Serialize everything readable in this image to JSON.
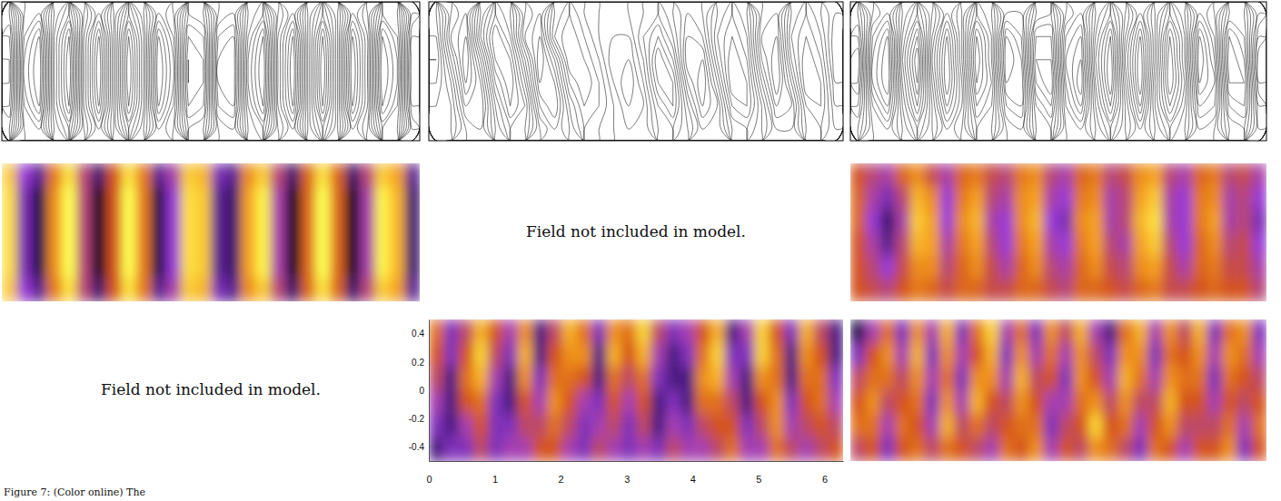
{
  "chart_data": [
    {
      "type": "contour",
      "zlim": [
        -9,
        9
      ],
      "tick_labels": false,
      "z": [
        [
          4,
          -3,
          -4,
          2,
          5,
          -1,
          -5,
          0,
          5,
          1,
          -4,
          -2,
          4,
          3,
          -3,
          -4,
          2,
          4,
          -2,
          -5,
          1,
          5,
          1,
          -5,
          -2,
          4,
          3,
          -4
        ],
        [
          6,
          -4,
          -7,
          3,
          8,
          -2,
          -8,
          0,
          8,
          2,
          -7,
          -3,
          6,
          5,
          -5,
          -6,
          3,
          7,
          -3,
          -8,
          1,
          8,
          1,
          -8,
          -3,
          7,
          4,
          -6
        ],
        [
          7,
          -5,
          -8,
          3,
          9,
          -2,
          -9,
          0,
          9,
          2,
          -8,
          -4,
          7,
          6,
          -6,
          -7,
          4,
          8,
          -3,
          -9,
          1,
          9,
          1,
          -9,
          -3,
          8,
          5,
          -7
        ],
        [
          7,
          -5,
          -8,
          3,
          9,
          -2,
          -9,
          0,
          9,
          2,
          -8,
          -4,
          7,
          6,
          -6,
          -7,
          4,
          8,
          -3,
          -9,
          1,
          9,
          1,
          -9,
          -3,
          8,
          5,
          -7
        ],
        [
          6,
          -4,
          -7,
          3,
          8,
          -2,
          -8,
          0,
          8,
          2,
          -7,
          -3,
          6,
          5,
          -5,
          -6,
          3,
          7,
          -3,
          -8,
          1,
          8,
          1,
          -8,
          -3,
          7,
          4,
          -6
        ],
        [
          4,
          -3,
          -4,
          2,
          5,
          -1,
          -5,
          0,
          5,
          1,
          -4,
          -2,
          4,
          3,
          -3,
          -4,
          2,
          4,
          -2,
          -5,
          1,
          5,
          1,
          -5,
          -2,
          4,
          3,
          -4
        ]
      ]
    },
    {
      "type": "contour",
      "zlim": [
        -9,
        9
      ],
      "tick_labels": false,
      "z": [
        [
          2,
          -3,
          -5,
          1,
          5,
          3,
          -2,
          -4,
          1,
          3,
          1,
          0,
          -1,
          0,
          1,
          2,
          0,
          -2,
          -1,
          2,
          4,
          2,
          -3,
          -4,
          1,
          3,
          1,
          -1
        ],
        [
          3,
          -4,
          -6,
          2,
          7,
          4,
          -3,
          -5,
          2,
          4,
          2,
          0,
          -1,
          -1,
          2,
          4,
          1,
          -3,
          -2,
          3,
          5,
          3,
          -4,
          -5,
          2,
          4,
          2,
          -2
        ],
        [
          4,
          -2,
          -7,
          -1,
          6,
          6,
          0,
          -6,
          -2,
          4,
          3,
          1,
          -2,
          -2,
          1,
          6,
          3,
          -4,
          -4,
          2,
          6,
          4,
          -3,
          -6,
          1,
          5,
          3,
          -2
        ],
        [
          3,
          0,
          -6,
          -3,
          4,
          7,
          2,
          -5,
          -4,
          2,
          4,
          2,
          -1,
          -3,
          0,
          5,
          5,
          -2,
          -5,
          0,
          6,
          5,
          -1,
          -6,
          -1,
          5,
          4,
          -1
        ],
        [
          2,
          1,
          -4,
          -4,
          2,
          6,
          4,
          -3,
          -5,
          0,
          3,
          2,
          0,
          -2,
          -1,
          3,
          5,
          0,
          -4,
          -2,
          4,
          5,
          1,
          -4,
          -3,
          3,
          4,
          0
        ],
        [
          1,
          1,
          -2,
          -3,
          1,
          4,
          3,
          -1,
          -3,
          -1,
          2,
          1,
          0,
          -1,
          -1,
          2,
          3,
          1,
          -2,
          -2,
          2,
          3,
          1,
          -2,
          -2,
          2,
          3,
          1
        ]
      ]
    },
    {
      "type": "contour",
      "zlim": [
        -9,
        9
      ],
      "tick_labels": false,
      "z": [
        [
          3,
          -2,
          -4,
          1,
          4,
          0,
          -4,
          -1,
          4,
          2,
          -3,
          -3,
          2,
          3,
          -2,
          -4,
          1,
          4,
          0,
          -4,
          0,
          4,
          1,
          -4,
          -2,
          3,
          3,
          -2
        ],
        [
          5,
          -4,
          -7,
          2,
          7,
          -1,
          -7,
          -1,
          7,
          3,
          -6,
          -4,
          5,
          5,
          -4,
          -6,
          2,
          7,
          -1,
          -7,
          0,
          7,
          2,
          -7,
          -3,
          6,
          4,
          -4
        ],
        [
          7,
          -5,
          -8,
          3,
          9,
          -2,
          -8,
          -1,
          8,
          3,
          -7,
          -5,
          6,
          6,
          -5,
          -7,
          3,
          8,
          -2,
          -8,
          0,
          8,
          2,
          -8,
          -4,
          7,
          5,
          -6
        ],
        [
          6,
          -5,
          -8,
          2,
          8,
          -1,
          -8,
          -2,
          7,
          4,
          -6,
          -6,
          5,
          7,
          -4,
          -8,
          2,
          8,
          -1,
          -8,
          1,
          8,
          3,
          -7,
          -5,
          6,
          6,
          -5
        ],
        [
          4,
          -3,
          -6,
          1,
          6,
          0,
          -6,
          -2,
          5,
          3,
          -4,
          -5,
          3,
          5,
          -3,
          -6,
          1,
          6,
          0,
          -6,
          1,
          6,
          2,
          -5,
          -4,
          4,
          5,
          -3
        ],
        [
          2,
          -2,
          -3,
          0,
          3,
          0,
          -3,
          -1,
          3,
          2,
          -2,
          -3,
          2,
          3,
          -2,
          -3,
          0,
          3,
          0,
          -3,
          0,
          3,
          1,
          -3,
          -2,
          2,
          3,
          -2
        ]
      ]
    },
    {
      "type": "heatmap",
      "zlim": [
        -8,
        8
      ],
      "tick_labels": false,
      "z": [
        [
          6,
          -4,
          -6,
          2,
          7,
          -2,
          -7,
          0,
          7,
          2,
          -6,
          -3,
          6,
          5,
          -5,
          -6,
          3,
          6,
          -2,
          -7,
          1,
          7,
          1,
          -7,
          -2,
          6,
          4,
          -6
        ],
        [
          7,
          -5,
          -8,
          3,
          9,
          -2,
          -9,
          0,
          9,
          2,
          -8,
          -4,
          7,
          6,
          -6,
          -7,
          4,
          8,
          -3,
          -9,
          1,
          9,
          1,
          -9,
          -3,
          8,
          5,
          -7
        ],
        [
          7,
          -5,
          -8,
          3,
          9,
          -2,
          -9,
          0,
          9,
          2,
          -8,
          -4,
          7,
          6,
          -6,
          -7,
          4,
          8,
          -3,
          -9,
          1,
          9,
          1,
          -9,
          -3,
          8,
          5,
          -7
        ],
        [
          7,
          -5,
          -8,
          3,
          9,
          -2,
          -9,
          0,
          9,
          2,
          -8,
          -4,
          7,
          6,
          -6,
          -7,
          4,
          8,
          -3,
          -9,
          1,
          9,
          1,
          -9,
          -3,
          8,
          5,
          -7
        ],
        [
          7,
          -5,
          -8,
          3,
          9,
          -2,
          -9,
          0,
          9,
          2,
          -8,
          -4,
          7,
          6,
          -6,
          -7,
          4,
          8,
          -3,
          -9,
          1,
          9,
          1,
          -9,
          -3,
          8,
          5,
          -7
        ],
        [
          6,
          -4,
          -6,
          2,
          7,
          -2,
          -7,
          0,
          7,
          2,
          -6,
          -3,
          6,
          5,
          -5,
          -6,
          3,
          6,
          -2,
          -7,
          1,
          7,
          1,
          -7,
          -2,
          6,
          4,
          -6
        ]
      ]
    },
    {
      "type": "note",
      "text": "Field not included in model."
    },
    {
      "type": "heatmap",
      "zlim": [
        -8,
        8
      ],
      "tick_labels": false,
      "z": [
        [
          0,
          -2,
          -3,
          1,
          3,
          -1,
          -3,
          1,
          2,
          -1,
          -2,
          2,
          3,
          -2,
          -3,
          1,
          2,
          -2,
          -1,
          3,
          4,
          -2,
          -3,
          1,
          2,
          -2,
          -1,
          -3
        ],
        [
          1,
          -3,
          -5,
          -2,
          5,
          3,
          -4,
          2,
          4,
          -2,
          -3,
          3,
          4,
          -3,
          -4,
          2,
          3,
          -3,
          -2,
          4,
          6,
          -3,
          -4,
          2,
          3,
          -3,
          -2,
          -4
        ],
        [
          1,
          -4,
          -7,
          -3,
          6,
          4,
          -4,
          3,
          5,
          -3,
          -4,
          3,
          5,
          -4,
          -5,
          3,
          4,
          -3,
          -2,
          5,
          7,
          -3,
          -4,
          2,
          4,
          -3,
          -2,
          -5
        ],
        [
          0,
          -3,
          -6,
          -2,
          5,
          4,
          -3,
          2,
          4,
          -2,
          -4,
          2,
          4,
          -3,
          -4,
          2,
          4,
          -2,
          -3,
          4,
          6,
          -2,
          -4,
          1,
          3,
          -2,
          -1,
          -4
        ],
        [
          0,
          -2,
          -4,
          -1,
          3,
          3,
          -2,
          1,
          3,
          -1,
          -3,
          1,
          3,
          -2,
          -3,
          1,
          3,
          -1,
          -2,
          3,
          4,
          -1,
          -3,
          1,
          2,
          -1,
          -1,
          -3
        ],
        [
          0,
          -1,
          -2,
          0,
          2,
          1,
          -1,
          1,
          1,
          -1,
          -1,
          1,
          1,
          -1,
          -2,
          1,
          1,
          0,
          -1,
          1,
          2,
          -1,
          -1,
          0,
          1,
          0,
          0,
          -2
        ]
      ]
    },
    {
      "type": "note",
      "text": "Field not included in model."
    },
    {
      "type": "heatmap",
      "zlim": [
        -5,
        5
      ],
      "xlim": [
        0,
        6.283
      ],
      "xticks": [
        0,
        1,
        2,
        3,
        4,
        5,
        6
      ],
      "ylim": [
        -0.5,
        0.5
      ],
      "yticks": [
        0.4,
        0.2,
        0,
        -0.2,
        -0.4
      ],
      "z": [
        [
          1,
          -3,
          -1,
          3,
          0,
          -2,
          2,
          -4,
          -1,
          3,
          1,
          -3,
          2,
          1,
          4,
          -1,
          -3,
          -2,
          0,
          3,
          -4,
          -2,
          4,
          0,
          -3,
          3,
          -1,
          -4
        ],
        [
          0,
          -3,
          0,
          4,
          -1,
          -3,
          3,
          -4,
          0,
          2,
          2,
          -4,
          3,
          0,
          3,
          -2,
          -4,
          -3,
          1,
          4,
          -3,
          -3,
          4,
          1,
          -4,
          2,
          0,
          -4
        ],
        [
          -1,
          -4,
          1,
          3,
          -2,
          -4,
          2,
          -3,
          1,
          1,
          0,
          -4,
          1,
          -1,
          1,
          -3,
          -4,
          -4,
          2,
          3,
          -2,
          -4,
          2,
          1,
          -4,
          1,
          1,
          -3
        ],
        [
          -2,
          -4,
          0,
          1,
          -3,
          -4,
          0,
          -2,
          2,
          0,
          -2,
          -3,
          0,
          -2,
          0,
          -4,
          -3,
          -4,
          1,
          1,
          -1,
          -4,
          0,
          2,
          -3,
          0,
          1,
          -2
        ],
        [
          -3,
          -4,
          -2,
          0,
          -3,
          -3,
          -1,
          -1,
          1,
          -1,
          -3,
          -2,
          -1,
          -3,
          -1,
          -4,
          -2,
          -3,
          -1,
          0,
          0,
          -3,
          -1,
          2,
          -2,
          -1,
          0,
          -1
        ],
        [
          -4,
          -3,
          -3,
          -1,
          -3,
          -2,
          -2,
          0,
          0,
          -2,
          -3,
          -1,
          -2,
          -3,
          -2,
          -3,
          -1,
          -2,
          -2,
          -1,
          1,
          -2,
          -2,
          1,
          -1,
          -2,
          -1,
          0
        ]
      ]
    },
    {
      "type": "heatmap",
      "zlim": [
        -5,
        5
      ],
      "tick_labels": false,
      "z": [
        [
          -5,
          -2,
          1,
          -3,
          2,
          -2,
          3,
          -3,
          1,
          4,
          -2,
          1,
          -3,
          2,
          -1,
          3,
          -2,
          -4,
          1,
          3,
          -2,
          2,
          -1,
          3,
          -3,
          1,
          2,
          -3
        ],
        [
          -3,
          0,
          2,
          -2,
          3,
          -3,
          2,
          -2,
          0,
          3,
          -3,
          2,
          -2,
          1,
          -2,
          2,
          -1,
          -3,
          2,
          2,
          -3,
          1,
          0,
          2,
          -2,
          2,
          1,
          -2
        ],
        [
          -1,
          1,
          1,
          -1,
          2,
          -2,
          1,
          -3,
          2,
          2,
          -2,
          3,
          -1,
          0,
          -3,
          2,
          0,
          -2,
          3,
          1,
          -2,
          2,
          1,
          1,
          -3,
          1,
          0,
          -1
        ],
        [
          0,
          2,
          -1,
          0,
          1,
          -3,
          2,
          -2,
          3,
          0,
          -1,
          2,
          0,
          -2,
          -2,
          1,
          2,
          -1,
          2,
          -1,
          -1,
          3,
          0,
          0,
          -2,
          0,
          -1,
          0
        ],
        [
          1,
          1,
          -2,
          1,
          0,
          -2,
          3,
          -1,
          1,
          -1,
          0,
          1,
          1,
          -3,
          -1,
          0,
          4,
          0,
          1,
          -2,
          0,
          2,
          -1,
          -1,
          -1,
          1,
          -2,
          1
        ],
        [
          -1,
          0,
          -3,
          0,
          1,
          -1,
          1,
          0,
          -1,
          -2,
          1,
          0,
          2,
          -2,
          0,
          -1,
          2,
          1,
          -1,
          -3,
          1,
          0,
          -2,
          0,
          0,
          2,
          -3,
          0
        ]
      ]
    }
  ],
  "caption": "Figure 7: (Color online) The"
}
